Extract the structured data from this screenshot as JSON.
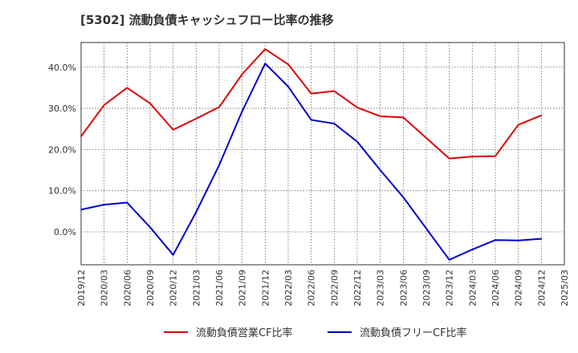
{
  "chart_data": {
    "type": "line",
    "title": "[5302]  流動負債キャッシュフロー比率の推移",
    "x": [
      "2019/12",
      "2020/03",
      "2020/06",
      "2020/09",
      "2020/12",
      "2021/03",
      "2021/06",
      "2021/09",
      "2021/12",
      "2022/03",
      "2022/06",
      "2022/09",
      "2022/12",
      "2023/03",
      "2023/06",
      "2023/09",
      "2023/12",
      "2024/03",
      "2024/06",
      "2024/09",
      "2024/12"
    ],
    "x_ticks": [
      "2019/12",
      "2020/03",
      "2020/06",
      "2020/09",
      "2020/12",
      "2021/03",
      "2021/06",
      "2021/09",
      "2021/12",
      "2022/03",
      "2022/06",
      "2022/09",
      "2022/12",
      "2023/03",
      "2023/06",
      "2023/09",
      "2023/12",
      "2024/03",
      "2024/06",
      "2024/09",
      "2024/12",
      "2025/03"
    ],
    "y_ticks": [
      0,
      10,
      20,
      30,
      40
    ],
    "y_tick_labels": [
      "0.0%",
      "10.0%",
      "20.0%",
      "30.0%",
      "40.0%"
    ],
    "ylim": [
      -8,
      46
    ],
    "grid": true,
    "legend_position": "bottom",
    "series": [
      {
        "name": "流動負債営業CF比率",
        "color": "#dd0000",
        "values": [
          23.2,
          30.8,
          35.0,
          31.2,
          24.8,
          27.5,
          30.3,
          38.3,
          44.4,
          40.7,
          33.6,
          34.2,
          30.2,
          28.1,
          27.8,
          22.8,
          17.8,
          18.3,
          18.4,
          26.0,
          28.3
        ]
      },
      {
        "name": "流動負債フリーCF比率",
        "color": "#0000cc",
        "values": [
          5.4,
          6.6,
          7.1,
          1.1,
          -5.6,
          4.8,
          16.2,
          29.3,
          40.9,
          35.3,
          27.2,
          26.3,
          21.9,
          15.0,
          8.4,
          0.8,
          -6.8,
          -4.3,
          -2.0,
          -2.1,
          -1.7
        ]
      }
    ]
  }
}
